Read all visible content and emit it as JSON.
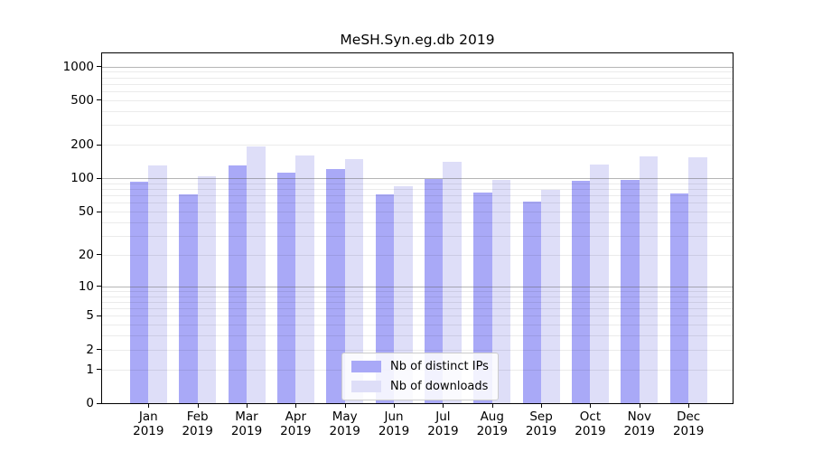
{
  "chart_data": {
    "type": "bar",
    "title": "MeSH.Syn.eg.db 2019",
    "xlabel": "",
    "ylabel": "",
    "y_scale": "log1p",
    "ylim": [
      0,
      1300
    ],
    "grid": true,
    "legend_position": "lower-center",
    "y_ticks": [
      0,
      1,
      2,
      5,
      10,
      20,
      50,
      100,
      200,
      500,
      1000
    ],
    "categories": [
      "Jan 2019",
      "Feb 2019",
      "Mar 2019",
      "Apr 2019",
      "May 2019",
      "Jun 2019",
      "Jul 2019",
      "Aug 2019",
      "Sep 2019",
      "Oct 2019",
      "Nov 2019",
      "Dec 2019"
    ],
    "series": [
      {
        "name": "Nb of distinct IPs",
        "color": "#a9a9f7",
        "values": [
          93,
          71,
          130,
          112,
          120,
          71,
          98,
          74,
          62,
          95,
          97,
          73
        ]
      },
      {
        "name": "Nb of downloads",
        "color": "#dedef8",
        "values": [
          130,
          105,
          192,
          161,
          149,
          84,
          140,
          96,
          78,
          133,
          158,
          154
        ]
      }
    ]
  }
}
